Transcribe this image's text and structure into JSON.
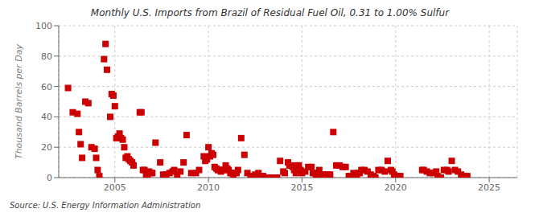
{
  "chart_data": {
    "type": "scatter",
    "title": "Monthly U.S. Imports from Brazil of Residual Fuel Oil, 0.31 to 1.00% Sulfur",
    "y_label": "Thousand Barrels per Day",
    "annotations": [
      "Source: U.S. Energy Information Administration"
    ],
    "color": "#cc0000",
    "marker": "square",
    "grid": true,
    "xlim": [
      2002.0,
      2026.5
    ],
    "ylim": [
      0,
      100
    ],
    "xticks": [
      2005,
      2010,
      2015,
      2020,
      2025
    ],
    "yticks": [
      0,
      20,
      40,
      60,
      80,
      100
    ],
    "x": [
      2002.5,
      2002.75,
      2003.0,
      2003.08,
      2003.17,
      2003.25,
      2003.42,
      2003.58,
      2003.75,
      2003.92,
      2004.0,
      2004.08,
      2004.17,
      2004.42,
      2004.5,
      2004.58,
      2004.75,
      2004.83,
      2004.92,
      2005.0,
      2005.08,
      2005.17,
      2005.25,
      2005.33,
      2005.42,
      2005.5,
      2005.58,
      2005.67,
      2005.75,
      2005.83,
      2005.92,
      2006.0,
      2006.33,
      2006.42,
      2006.5,
      2006.58,
      2006.67,
      2006.75,
      2006.83,
      2006.92,
      2007.0,
      2007.17,
      2007.42,
      2007.58,
      2007.75,
      2007.92,
      2008.08,
      2008.17,
      2008.33,
      2008.5,
      2008.67,
      2008.83,
      2009.08,
      2009.33,
      2009.5,
      2009.75,
      2009.83,
      2009.92,
      2010.0,
      2010.08,
      2010.17,
      2010.25,
      2010.33,
      2010.42,
      2010.5,
      2010.58,
      2010.67,
      2010.75,
      2010.83,
      2010.92,
      2011.0,
      2011.08,
      2011.17,
      2011.25,
      2011.33,
      2011.5,
      2011.58,
      2011.75,
      2011.92,
      2012.08,
      2012.25,
      2012.33,
      2012.5,
      2012.67,
      2012.83,
      2012.92,
      2013.08,
      2013.25,
      2013.5,
      2013.67,
      2013.83,
      2014.0,
      2014.08,
      2014.25,
      2014.33,
      2014.42,
      2014.5,
      2014.58,
      2014.67,
      2014.75,
      2014.83,
      2014.92,
      2015.0,
      2015.17,
      2015.33,
      2015.5,
      2015.58,
      2015.67,
      2015.75,
      2015.83,
      2015.92,
      2016.0,
      2016.08,
      2016.17,
      2016.33,
      2016.5,
      2016.67,
      2016.83,
      2017.0,
      2017.17,
      2017.33,
      2017.5,
      2017.58,
      2017.75,
      2017.83,
      2017.92,
      2018.0,
      2018.08,
      2018.17,
      2018.33,
      2018.5,
      2018.67,
      2018.83,
      2018.92,
      2019.08,
      2019.25,
      2019.42,
      2019.58,
      2019.75,
      2019.83,
      2019.92,
      2020.08,
      2020.25,
      2021.42,
      2021.5,
      2021.67,
      2021.83,
      2022.0,
      2022.17,
      2022.25,
      2022.42,
      2022.58,
      2022.75,
      2022.83,
      2023.0,
      2023.17,
      2023.33,
      2023.5,
      2023.67,
      2023.83
    ],
    "values": [
      59,
      43,
      42,
      30,
      22,
      13,
      50,
      49,
      20,
      19,
      13,
      5,
      1,
      78,
      88,
      71,
      40,
      55,
      54,
      47,
      26,
      27,
      29,
      26,
      25,
      20,
      13,
      14,
      12,
      11,
      10,
      8,
      43,
      43,
      5,
      5,
      2,
      1,
      4,
      3,
      3,
      23,
      10,
      2,
      2,
      3,
      4,
      5,
      2,
      4,
      10,
      28,
      3,
      3,
      5,
      14,
      11,
      12,
      20,
      14,
      16,
      15,
      7,
      6,
      5,
      5,
      4,
      5,
      5,
      8,
      6,
      5,
      3,
      3,
      2,
      3,
      5,
      26,
      15,
      3,
      1,
      1,
      2,
      3,
      1,
      1,
      0,
      0,
      0,
      0,
      11,
      4,
      3,
      10,
      8,
      8,
      7,
      5,
      3,
      8,
      8,
      5,
      3,
      4,
      7,
      7,
      3,
      3,
      2,
      3,
      5,
      2,
      2,
      2,
      2,
      2,
      30,
      8,
      8,
      7,
      7,
      1,
      1,
      3,
      2,
      2,
      3,
      3,
      5,
      5,
      4,
      2,
      1,
      0,
      5,
      5,
      4,
      11,
      5,
      4,
      2,
      1,
      1,
      5,
      5,
      4,
      3,
      3,
      4,
      1,
      0,
      5,
      5,
      4,
      11,
      5,
      4,
      2,
      1,
      1
    ]
  }
}
